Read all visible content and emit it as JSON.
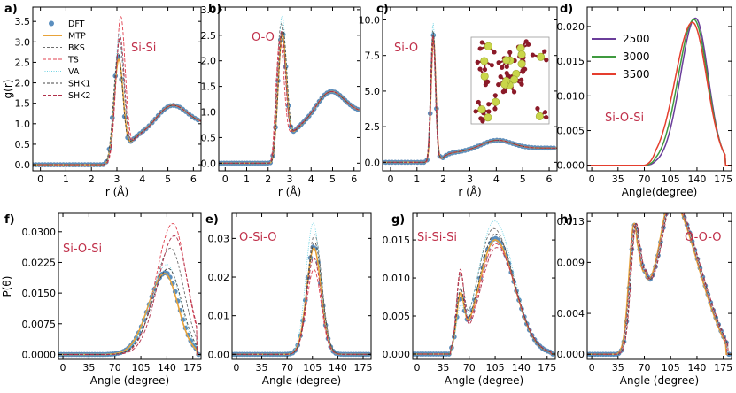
{
  "colors": {
    "DFT": "#5b8fbf",
    "MTP": "#e8a33a",
    "BKS": "#6e6e6e",
    "TS": "#e0414f",
    "VA": "#6fd3e3",
    "SHK1": "#444444",
    "SHK2": "#b0304a",
    "T2500": "#6a3d9a",
    "T3000": "#3f9a3f",
    "T3500": "#e53e2e",
    "annot": "#c0304a"
  },
  "chart_data": [
    {
      "id": "a",
      "panel_label": "a)",
      "type": "line",
      "annotation": "Si-Si",
      "xlabel": "r (Å)",
      "ylabel": "g(r)",
      "xlim": [
        -0.3,
        6.3
      ],
      "ylim": [
        -0.15,
        3.85
      ],
      "xticks": [
        0,
        1,
        2,
        3,
        4,
        5,
        6
      ],
      "xticklabels": [
        "0",
        "1",
        "2",
        "3",
        "4",
        "5",
        "6"
      ],
      "yticks": [
        0,
        0.5,
        1,
        1.5,
        2,
        2.5,
        3,
        3.5
      ],
      "yticklabels": [
        "0.0",
        "0.5",
        "1.0",
        "1.5",
        "2.0",
        "2.5",
        "3.0",
        "3.5"
      ],
      "legend": [
        "DFT",
        "MTP",
        "BKS",
        "TS",
        "VA",
        "SHK1",
        "SHK2"
      ],
      "legend_position": "upper-left",
      "curve": "gr",
      "peaks": [
        {
          "x": 3.05,
          "h": 2.6,
          "w": 0.18
        },
        {
          "x": 5.2,
          "h": 1.35,
          "w": 0.55
        }
      ],
      "onset": 2.5,
      "tail": 1.0,
      "variants": {
        "MTP": [
          3.07,
          2.55
        ],
        "BKS": [
          3.1,
          3.0
        ],
        "TS": [
          3.15,
          3.6
        ],
        "VA": [
          3.1,
          3.2
        ],
        "SHK1": [
          3.05,
          2.7
        ],
        "SHK2": [
          3.12,
          3.1
        ]
      }
    },
    {
      "id": "b",
      "panel_label": "b)",
      "type": "line",
      "annotation": "O-O",
      "xlabel": "r (Å)",
      "ylabel": "",
      "xlim": [
        -0.3,
        6.3
      ],
      "ylim": [
        -0.15,
        3.05
      ],
      "xticks": [
        0,
        1,
        2,
        3,
        4,
        5,
        6
      ],
      "xticklabels": [
        "0",
        "1",
        "2",
        "3",
        "4",
        "5",
        "6"
      ],
      "yticks": [
        0,
        0.5,
        1,
        1.5,
        2,
        2.5,
        3
      ],
      "yticklabels": [
        "0.0",
        "0.5",
        "1.0",
        "1.5",
        "2.0",
        "2.5",
        "3.0"
      ],
      "curve": "gr",
      "peaks": [
        {
          "x": 2.65,
          "h": 2.55,
          "w": 0.2
        },
        {
          "x": 4.95,
          "h": 1.3,
          "w": 0.6
        }
      ],
      "onset": 2.2,
      "tail": 1.0,
      "variants": {
        "MTP": [
          2.66,
          2.5
        ],
        "BKS": [
          2.6,
          2.7
        ],
        "TS": [
          2.55,
          2.4
        ],
        "VA": [
          2.65,
          2.85
        ],
        "SHK1": [
          2.68,
          2.6
        ],
        "SHK2": [
          2.62,
          2.55
        ]
      }
    },
    {
      "id": "c",
      "panel_label": "c)",
      "type": "line",
      "annotation": "Si-O",
      "xlabel": "r (Å)",
      "ylabel": "",
      "xlim": [
        -0.3,
        6.3
      ],
      "ylim": [
        -0.6,
        10.9
      ],
      "xticks": [
        0,
        1,
        2,
        3,
        4,
        5,
        6
      ],
      "xticklabels": [
        "0",
        "1",
        "2",
        "3",
        "4",
        "5",
        "6"
      ],
      "yticks": [
        0,
        2.5,
        5,
        7.5,
        10
      ],
      "yticklabels": [
        "0.0",
        "2.5",
        "5.0",
        "7.5",
        "10.0"
      ],
      "curve": "gr",
      "peaks": [
        {
          "x": 1.62,
          "h": 9.0,
          "w": 0.09
        },
        {
          "x": 4.05,
          "h": 1.45,
          "w": 0.55
        }
      ],
      "onset": 1.35,
      "tail": 1.0,
      "variants": {
        "MTP": [
          1.62,
          8.9
        ],
        "BKS": [
          1.6,
          9.4
        ],
        "TS": [
          1.63,
          8.7
        ],
        "VA": [
          1.61,
          9.9
        ],
        "SHK1": [
          1.62,
          9.2
        ],
        "SHK2": [
          1.6,
          9.1
        ]
      },
      "inset": "atomic-structure"
    },
    {
      "id": "d",
      "panel_label": "d)",
      "type": "line",
      "annotation": "Si-O-Si",
      "xlabel": "Angle(degree)",
      "ylabel": "",
      "xlim": [
        -6,
        186
      ],
      "ylim": [
        -0.0008,
        0.0228
      ],
      "xticks": [
        0,
        35,
        70,
        105,
        140,
        175
      ],
      "xticklabels": [
        "0",
        "35",
        "70",
        "105",
        "140",
        "175"
      ],
      "yticks": [
        0,
        0.005,
        0.01,
        0.015,
        0.02
      ],
      "yticklabels": [
        "0.000",
        "0.005",
        "0.010",
        "0.015",
        "0.020"
      ],
      "legend": [
        "2500",
        "3000",
        "3500"
      ],
      "legend_position": "upper-right",
      "series": [
        {
          "name": "2500",
          "mu": 138,
          "sl": 20,
          "sr": 17,
          "h": 0.0212
        },
        {
          "name": "3000",
          "mu": 136,
          "sl": 21,
          "sr": 18,
          "h": 0.021
        },
        {
          "name": "3500",
          "mu": 134,
          "sl": 23,
          "sr": 19,
          "h": 0.0206
        }
      ]
    },
    {
      "id": "f",
      "panel_label": "f)",
      "type": "line",
      "annotation": "Si-O-Si",
      "xlabel": "Angle (degree)",
      "ylabel": "P(θ)",
      "xlim": [
        -6,
        186
      ],
      "ylim": [
        -0.0012,
        0.0345
      ],
      "xticks": [
        0,
        35,
        70,
        105,
        140,
        175
      ],
      "xticklabels": [
        "0",
        "35",
        "70",
        "105",
        "140",
        "175"
      ],
      "yticks": [
        0,
        0.0075,
        0.015,
        0.0225,
        0.03
      ],
      "yticklabels": [
        "0.0000",
        "0.0075",
        "0.0150",
        "0.0225",
        "0.0300"
      ],
      "curve": "bond",
      "base": {
        "mu": 138,
        "sl": 22,
        "sr": 18,
        "h": 0.02
      },
      "variants": {
        "MTP": [
          137,
          0.0198
        ],
        "BKS": [
          145,
          0.026
        ],
        "TS": [
          148,
          0.032
        ],
        "VA": [
          140,
          0.022
        ],
        "SHK1": [
          142,
          0.021
        ],
        "SHK2": [
          150,
          0.029
        ]
      }
    },
    {
      "id": "e",
      "panel_label": "e)",
      "type": "line",
      "annotation": "O-Si-O",
      "xlabel": "Angle (degree)",
      "ylabel": "",
      "xlim": [
        -6,
        186
      ],
      "ylim": [
        -0.0013,
        0.0365
      ],
      "xticks": [
        0,
        35,
        70,
        105,
        140,
        175
      ],
      "xticklabels": [
        "0",
        "35",
        "70",
        "105",
        "140",
        "175"
      ],
      "yticks": [
        0,
        0.01,
        0.02,
        0.03
      ],
      "yticklabels": [
        "0.00",
        "0.01",
        "0.02",
        "0.03"
      ],
      "curve": "bond",
      "base": {
        "mu": 107,
        "sl": 10,
        "sr": 10,
        "h": 0.028
      },
      "variants": {
        "MTP": [
          107,
          0.0275
        ],
        "BKS": [
          108,
          0.031
        ],
        "TS": [
          107,
          0.022
        ],
        "VA": [
          106,
          0.034
        ],
        "SHK1": [
          108,
          0.029
        ],
        "SHK2": [
          107,
          0.025
        ]
      }
    },
    {
      "id": "g",
      "panel_label": "g)",
      "type": "line",
      "annotation": "Si-Si-Si",
      "xlabel": "Angle (degree)",
      "ylabel": "",
      "xlim": [
        -6,
        186
      ],
      "ylim": [
        -0.0007,
        0.0185
      ],
      "xticks": [
        0,
        35,
        70,
        105,
        140,
        175
      ],
      "xticklabels": [
        "0",
        "35",
        "70",
        "105",
        "140",
        "175"
      ],
      "yticks": [
        0,
        0.005,
        0.01,
        0.015
      ],
      "yticklabels": [
        "0.000",
        "0.005",
        "0.010",
        "0.015"
      ],
      "curve": "ssi",
      "base": {
        "mu": 105,
        "sl": 22,
        "sr": 26,
        "h": 0.0152,
        "m2": 58,
        "h2": 0.006
      },
      "variants": {
        "MTP": [
          105,
          0.015,
          0.0065
        ],
        "BKS": [
          103,
          0.0165,
          0.0085
        ],
        "TS": [
          106,
          0.0145,
          0.0095
        ],
        "VA": [
          104,
          0.0175,
          0.0045
        ],
        "SHK1": [
          105,
          0.0158,
          0.007
        ],
        "SHK2": [
          107,
          0.014,
          0.01
        ]
      }
    },
    {
      "id": "h",
      "panel_label": "h)",
      "type": "line",
      "annotation": "O-O-O",
      "xlabel": "Angle (degree)",
      "ylabel": "",
      "xlim": [
        -6,
        186
      ],
      "ylim": [
        -0.0005,
        0.0138
      ],
      "xticks": [
        0,
        35,
        70,
        105,
        140,
        175
      ],
      "xticklabels": [
        "0",
        "35",
        "70",
        "105",
        "140",
        "175"
      ],
      "yticks": [
        0,
        0.004,
        0.009,
        0.013
      ],
      "yticklabels": [
        "0.000",
        "0.004",
        "0.009",
        "0.013"
      ],
      "curve": "ooo",
      "base": {
        "m1": 58,
        "h1": 0.0128,
        "m2": 108,
        "h2": 0.0094
      }
    }
  ]
}
